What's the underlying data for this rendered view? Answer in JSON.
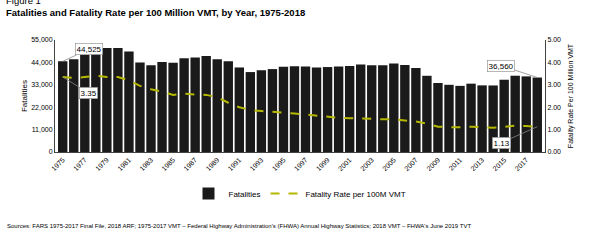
{
  "chart_data": {
    "type": "bar",
    "subtitle": "Figure 1",
    "title": "Fatalities and Fatality Rate per 100 Million VMT, by Year, 1975-2018",
    "source": "Sources: FARS 1975-2017 Final File, 2018 ARF; 1975-2017 VMT – Federal Highway Administration's (FHWA) Annual Highway Statistics; 2018 VMT – FHWA's June 2019 TVT",
    "x": [
      1975,
      1976,
      1977,
      1978,
      1979,
      1980,
      1981,
      1982,
      1983,
      1984,
      1985,
      1986,
      1987,
      1988,
      1989,
      1990,
      1991,
      1992,
      1993,
      1994,
      1995,
      1996,
      1997,
      1998,
      1999,
      2000,
      2001,
      2002,
      2003,
      2004,
      2005,
      2006,
      2007,
      2008,
      2009,
      2010,
      2011,
      2012,
      2013,
      2014,
      2015,
      2016,
      2017,
      2018
    ],
    "series": [
      {
        "name": "Fatalities",
        "type": "bar",
        "color": "#1a1a1a",
        "values": [
          44525,
          45523,
          47878,
          52411,
          51093,
          51091,
          49301,
          43945,
          42589,
          44257,
          43825,
          46087,
          46390,
          47087,
          45555,
          44599,
          41508,
          39250,
          40150,
          40716,
          41817,
          42065,
          42013,
          41501,
          41717,
          41945,
          42196,
          43005,
          42643,
          42636,
          43510,
          42708,
          41259,
          37423,
          33883,
          32999,
          32479,
          33561,
          32719,
          32675,
          35485,
          37461,
          37133,
          36560
        ]
      },
      {
        "name": "Fatality Rate per 100M VMT",
        "type": "line",
        "axis": "y2",
        "color": "#b5b800",
        "line_style": "dashed",
        "values": [
          3.35,
          3.3,
          3.35,
          3.4,
          3.35,
          3.35,
          3.2,
          2.95,
          2.8,
          2.7,
          2.55,
          2.6,
          2.57,
          2.55,
          2.45,
          2.2,
          2.0,
          1.87,
          1.83,
          1.8,
          1.77,
          1.72,
          1.67,
          1.62,
          1.55,
          1.53,
          1.51,
          1.51,
          1.48,
          1.46,
          1.46,
          1.41,
          1.36,
          1.27,
          1.13,
          1.11,
          1.1,
          1.13,
          1.1,
          1.08,
          1.12,
          1.18,
          1.16,
          1.13
        ]
      }
    ],
    "xlim": [
      1974.3,
      2018.7
    ],
    "xticks": [
      1975,
      1977,
      1979,
      1981,
      1983,
      1985,
      1987,
      1989,
      1991,
      1993,
      1995,
      1997,
      1999,
      2001,
      2003,
      2005,
      2007,
      2009,
      2011,
      2013,
      2015,
      2017
    ],
    "ylabel": "Fatalities",
    "ylim": [
      0,
      55000
    ],
    "yticks": [
      0,
      {
        "value": 11000,
        "label": "11,000"
      },
      {
        "value": 22000,
        "label": "22,000"
      },
      {
        "value": 33000,
        "label": "33,000"
      },
      {
        "value": 44000,
        "label": "44,000"
      },
      {
        "value": 55000,
        "label": "55,000"
      }
    ],
    "y2label": "Fatality Rate Per 100 Million VMT",
    "y2lim": [
      0,
      5.0
    ],
    "y2ticks": [
      {
        "value": 0,
        "label": "0.00"
      },
      {
        "value": 1,
        "label": "1.00"
      },
      {
        "value": 2,
        "label": "2.00"
      },
      {
        "value": 3,
        "label": "3.00"
      },
      {
        "value": 4,
        "label": "4.00"
      },
      {
        "value": 5,
        "label": "5.00"
      }
    ],
    "annotations": [
      {
        "text": "44,525",
        "x": 1975,
        "y": 44525
      },
      {
        "text": "3.35",
        "x": 1975,
        "y": 3.35,
        "axis": "y2"
      },
      {
        "text": "36,560",
        "x": 2018,
        "y": 36560
      },
      {
        "text": "1.13",
        "x": 2018,
        "y": 1.13,
        "axis": "y2"
      }
    ],
    "grid": false,
    "legend": "bottom"
  }
}
